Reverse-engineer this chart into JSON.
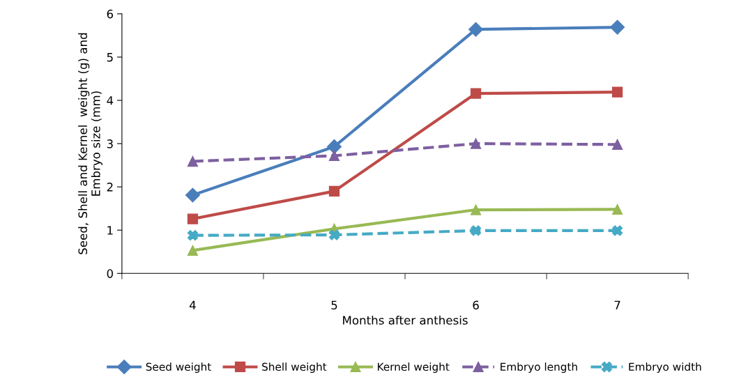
{
  "chart_data": {
    "type": "line",
    "xlabel": "Months after anthesis",
    "ylabel": "Seed, Shell and Kernel  weight (g) and\nEmbryo size (mm)",
    "categories": [
      "4",
      "5",
      "6",
      "7"
    ],
    "ylim": [
      0,
      6
    ],
    "yticks": [
      0,
      1,
      2,
      3,
      4,
      5,
      6
    ],
    "grid": false,
    "legend": "bottom",
    "series": [
      {
        "name": "Seed weight",
        "color": "#4a7ebb",
        "marker": "diamond",
        "line_style": "solid",
        "values": [
          1.81,
          2.93,
          5.64,
          5.69
        ]
      },
      {
        "name": "Shell weight",
        "color": "#be4b48",
        "marker": "square",
        "line_style": "solid",
        "values": [
          1.26,
          1.9,
          4.16,
          4.19
        ]
      },
      {
        "name": "Kernel weight",
        "color": "#98b954",
        "marker": "triangle",
        "line_style": "solid",
        "values": [
          0.53,
          1.03,
          1.47,
          1.48
        ]
      },
      {
        "name": "Embryo length",
        "color": "#7d60a0",
        "marker": "triangle",
        "line_style": "dashed",
        "values": [
          2.59,
          2.72,
          3.0,
          2.98
        ]
      },
      {
        "name": "Embryo width",
        "color": "#46aac5",
        "marker": "cross",
        "line_style": "dashed",
        "values": [
          0.88,
          0.89,
          0.99,
          0.99
        ]
      }
    ]
  }
}
